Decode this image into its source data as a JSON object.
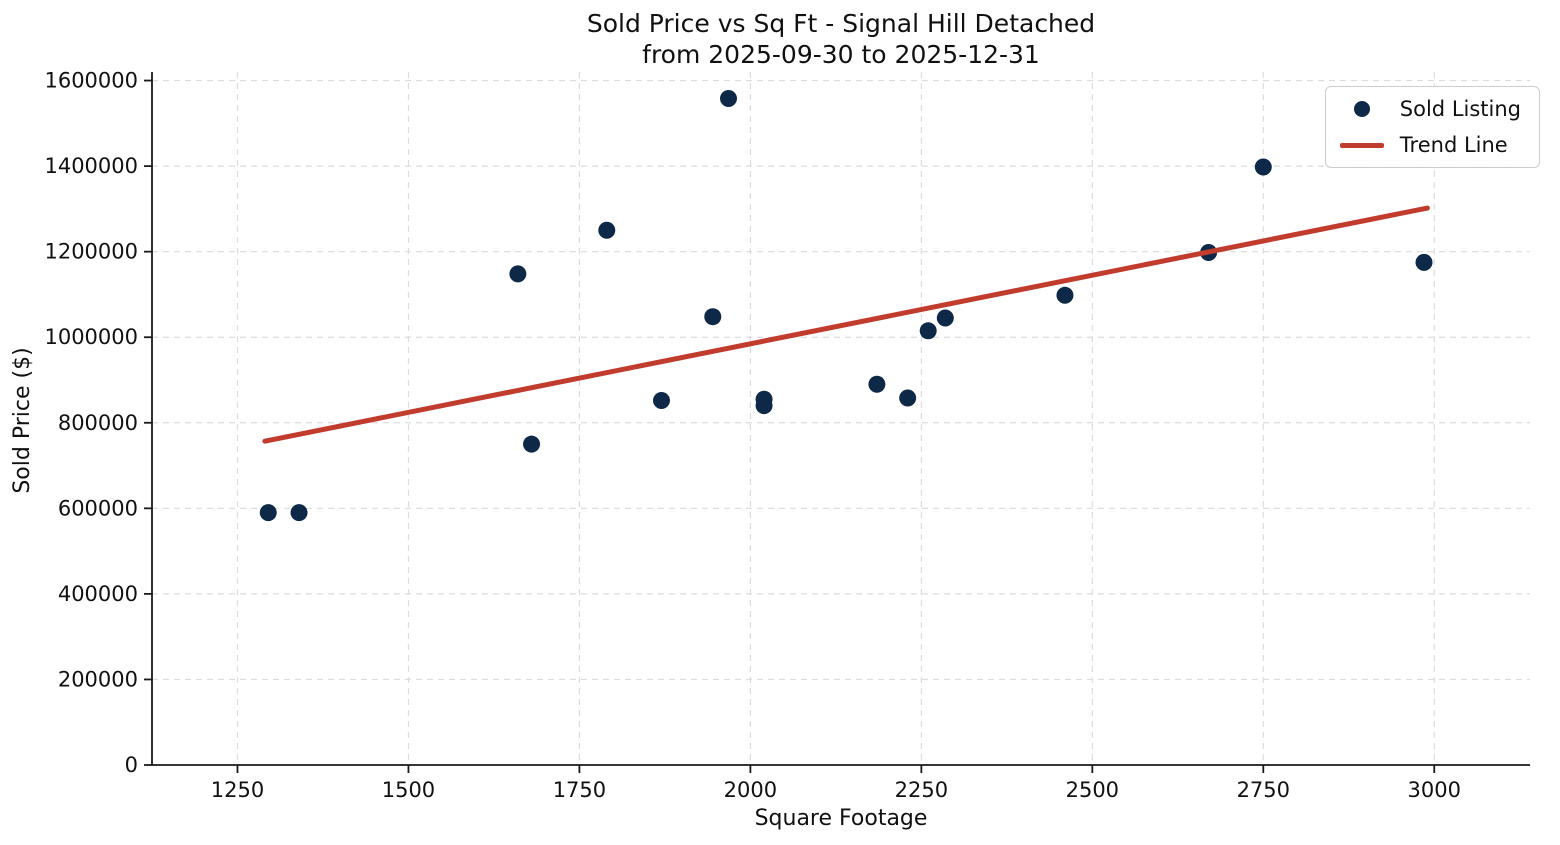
{
  "title": {
    "line1": "Sold Price vs Sq Ft - Signal Hill Detached",
    "line2": "from 2025-09-30 to 2025-12-31"
  },
  "legend": {
    "sold_listing_label": "Sold Listing",
    "trend_line_label": "Trend Line",
    "position": "upper right"
  },
  "colors": {
    "marker": "#0e2947",
    "trend": "#c23c2e",
    "grid": "#dcdcdc",
    "axis": "#1a1a1a",
    "text": "#111111"
  },
  "chart_data": {
    "type": "scatter",
    "title": "Sold Price vs Sq Ft - Signal Hill Detached\nfrom 2025-09-30 to 2025-12-31",
    "xlabel": "Square Footage",
    "ylabel": "Sold Price ($)",
    "xlim": [
      1125,
      3140
    ],
    "ylim": [
      0,
      1620000
    ],
    "x_ticks": [
      1250,
      1500,
      1750,
      2000,
      2250,
      2500,
      2750,
      3000
    ],
    "y_ticks": [
      0,
      200000,
      400000,
      600000,
      800000,
      1000000,
      1200000,
      1400000,
      1600000
    ],
    "grid": true,
    "legend_position": "upper right",
    "series": [
      {
        "name": "Sold Listing",
        "type": "scatter",
        "points": [
          [
            1295,
            590000
          ],
          [
            1340,
            590000
          ],
          [
            1660,
            1148000
          ],
          [
            1680,
            750000
          ],
          [
            1790,
            1250000
          ],
          [
            1870,
            852000
          ],
          [
            1945,
            1048000
          ],
          [
            1968,
            1558000
          ],
          [
            2020,
            855000
          ],
          [
            2020,
            840000
          ],
          [
            2185,
            890000
          ],
          [
            2230,
            858000
          ],
          [
            2260,
            1015000
          ],
          [
            2285,
            1045000
          ],
          [
            2460,
            1098000
          ],
          [
            2670,
            1198000
          ],
          [
            2750,
            1398000
          ],
          [
            2985,
            1175000
          ]
        ]
      },
      {
        "name": "Trend Line",
        "type": "line",
        "points": [
          [
            1290,
            757000
          ],
          [
            2990,
            1302000
          ]
        ]
      }
    ]
  }
}
